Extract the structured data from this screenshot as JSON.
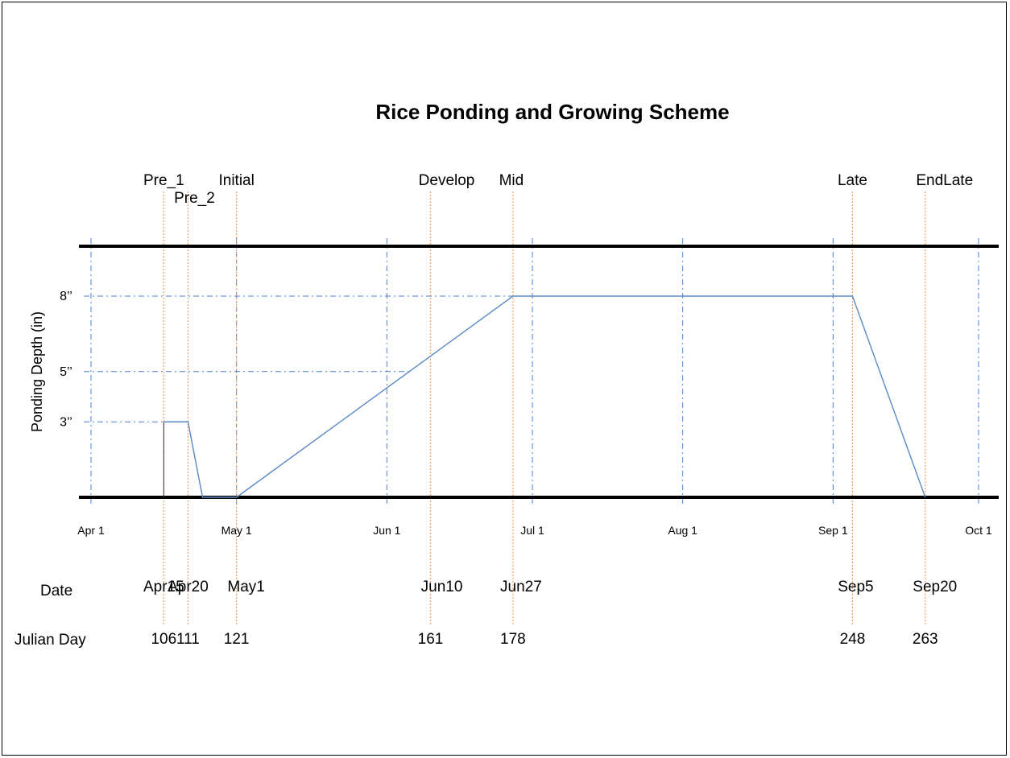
{
  "chart_data": {
    "type": "line",
    "title": "Rice Ponding and Growing Scheme",
    "ylabel": "Ponding Depth (in)",
    "ylim": [
      0,
      10
    ],
    "xlim": [
      91,
      275
    ],
    "month_ticks": [
      {
        "label": "Apr 1",
        "day": 91
      },
      {
        "label": "May 1",
        "day": 121
      },
      {
        "label": "Jun 1",
        "day": 152
      },
      {
        "label": "Jul 1",
        "day": 182
      },
      {
        "label": "Aug 1",
        "day": 213
      },
      {
        "label": "Sep 1",
        "day": 244
      },
      {
        "label": "Oct 1",
        "day": 274
      }
    ],
    "y_ticks": [
      {
        "label": "3’’",
        "value": 3
      },
      {
        "label": "5’’",
        "value": 5
      },
      {
        "label": "8’’",
        "value": 8
      }
    ],
    "stages": [
      {
        "name": "Pre_1",
        "date": "Apr15",
        "julian": "106",
        "day": 106
      },
      {
        "name": "Pre_2",
        "date": "Apr20",
        "julian": "111",
        "day": 111
      },
      {
        "name": "Initial",
        "date": "May1",
        "julian": "121",
        "day": 121
      },
      {
        "name": "Develop",
        "date": "Jun10",
        "julian": "161",
        "day": 161
      },
      {
        "name": "Mid",
        "date": "Jun27",
        "julian": "178",
        "day": 178
      },
      {
        "name": "Late",
        "date": "Sep5",
        "julian": "248",
        "day": 248
      },
      {
        "name": "EndLate",
        "date": "Sep20",
        "julian": "263",
        "day": 263
      }
    ],
    "series": [
      {
        "name": "",
        "x": [
          106,
          111,
          114,
          121,
          178,
          248,
          263
        ],
        "y": [
          3,
          3,
          0,
          0,
          8,
          8,
          0
        ]
      }
    ],
    "row_labels": {
      "date": "Date",
      "julian": "Julian Day"
    }
  },
  "colors": {
    "ponding_line": "#5a8ac6",
    "stage_line": "#f2a36b",
    "grid": "#4a7ecf",
    "frame": "#000000"
  }
}
